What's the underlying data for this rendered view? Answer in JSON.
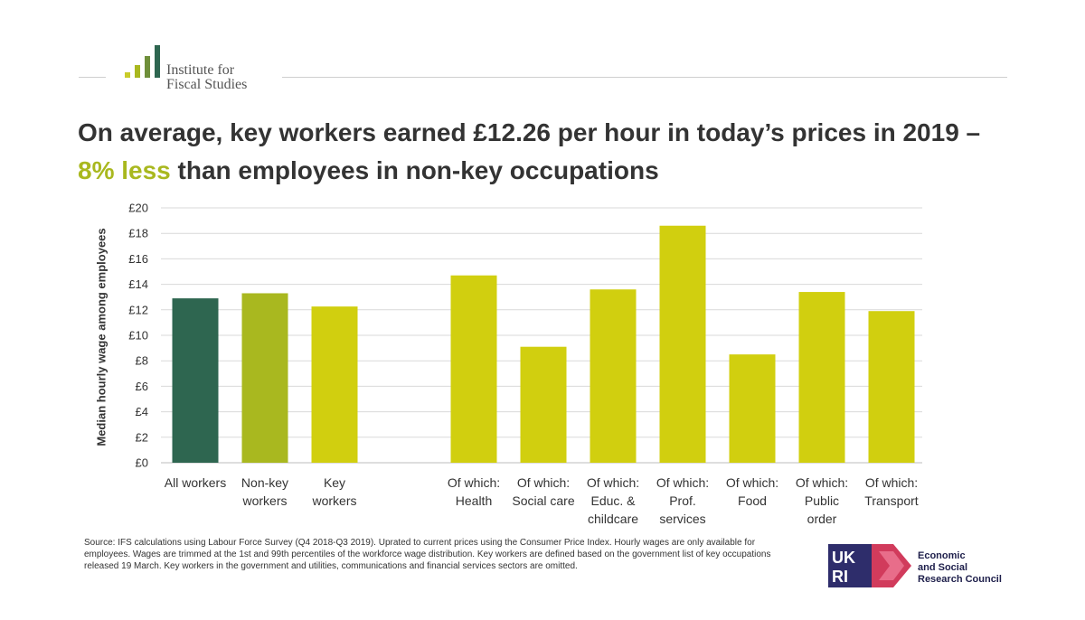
{
  "header": {
    "logo_text_line1": "Institute for",
    "logo_text_line2": "Fiscal Studies"
  },
  "title": {
    "part1": "On average, key workers earned £12.26 per hour in today’s prices in 2019 – ",
    "highlight": "8% less",
    "part2": " than employees in non-key occupations",
    "highlight_color": "#a9b81f"
  },
  "chart_data": {
    "type": "bar",
    "ylabel": "Median hourly wage among employees",
    "xlabel": "",
    "ylim": [
      0,
      20
    ],
    "y_ticks": [
      "£0",
      "£2",
      "£4",
      "£6",
      "£8",
      "£10",
      "£12",
      "£14",
      "£16",
      "£18",
      "£20"
    ],
    "grid": true,
    "categories": [
      [
        "All workers"
      ],
      [
        "Non-key",
        "workers"
      ],
      [
        "Key",
        "workers"
      ],
      [
        "Of which:",
        "Health"
      ],
      [
        "Of which:",
        "Social care"
      ],
      [
        "Of which:",
        "Educ. &",
        "childcare"
      ],
      [
        "Of which:",
        "Prof.",
        "services"
      ],
      [
        "Of which:",
        "Food"
      ],
      [
        "Of which:",
        "Public",
        "order"
      ],
      [
        "Of which:",
        "Transport"
      ]
    ],
    "values": [
      12.9,
      13.3,
      12.26,
      14.7,
      9.1,
      13.6,
      18.6,
      8.5,
      13.4,
      11.9
    ],
    "colors": [
      "#2e6650",
      "#a9b81f",
      "#d1cf0f",
      "#d1cf0f",
      "#d1cf0f",
      "#d1cf0f",
      "#d1cf0f",
      "#d1cf0f",
      "#d1cf0f",
      "#d1cf0f"
    ]
  },
  "footer": {
    "source": "Source: IFS calculations using Labour Force Survey (Q4 2018-Q3 2019). Uprated to current prices using the Consumer Price Index. Hourly wages are only available for employees. Wages are trimmed at the 1st and 99th percentiles of the workforce wage distribution. Key workers are defined based on the government list of key occupations released 19 March. Key workers in the government and utilities, communications and financial services sectors are omitted.",
    "funder_logo_text": "UKRI",
    "funder_name": "Economic\nand Social\nResearch Council"
  }
}
